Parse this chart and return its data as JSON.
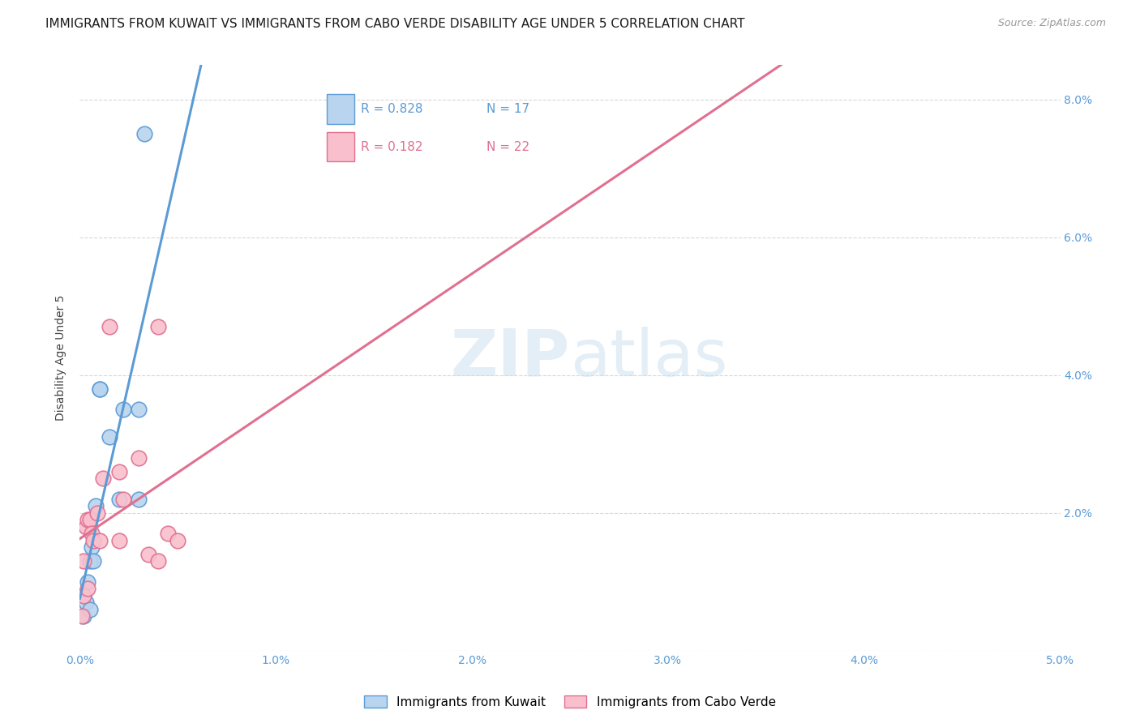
{
  "title": "IMMIGRANTS FROM KUWAIT VS IMMIGRANTS FROM CABO VERDE DISABILITY AGE UNDER 5 CORRELATION CHART",
  "source": "Source: ZipAtlas.com",
  "ylabel": "Disability Age Under 5",
  "xlim": [
    0.0,
    0.05
  ],
  "ylim": [
    0.0,
    0.085
  ],
  "xticks": [
    0.0,
    0.01,
    0.02,
    0.03,
    0.04,
    0.05
  ],
  "yticks": [
    0.0,
    0.02,
    0.04,
    0.06,
    0.08
  ],
  "xticklabels": [
    "0.0%",
    "1.0%",
    "2.0%",
    "3.0%",
    "4.0%",
    "5.0%"
  ],
  "yticklabels": [
    "",
    "2.0%",
    "4.0%",
    "6.0%",
    "8.0%"
  ],
  "legend_r1": "R = 0.828",
  "legend_n1": "N = 17",
  "legend_r2": "R = 0.182",
  "legend_n2": "N = 22",
  "color_kuwait": "#b8d4ee",
  "color_cabo": "#f9bfcc",
  "line_color_kuwait": "#5b9bd5",
  "line_color_cabo": "#e07090",
  "background_color": "#ffffff",
  "grid_color": "#d8d8d8",
  "kuwait_x": [
    0.0002,
    0.0002,
    0.0003,
    0.0004,
    0.0005,
    0.0005,
    0.0006,
    0.0007,
    0.0008,
    0.001,
    0.001,
    0.0015,
    0.002,
    0.0022,
    0.003,
    0.003,
    0.0033
  ],
  "kuwait_y": [
    0.005,
    0.008,
    0.007,
    0.01,
    0.013,
    0.006,
    0.015,
    0.013,
    0.021,
    0.038,
    0.038,
    0.031,
    0.022,
    0.035,
    0.035,
    0.022,
    0.075
  ],
  "cabo_x": [
    0.0001,
    0.0002,
    0.0002,
    0.0003,
    0.0004,
    0.0004,
    0.0005,
    0.0006,
    0.0007,
    0.0009,
    0.001,
    0.0012,
    0.0015,
    0.002,
    0.002,
    0.0022,
    0.003,
    0.0035,
    0.004,
    0.004,
    0.0045,
    0.005
  ],
  "cabo_y": [
    0.005,
    0.008,
    0.013,
    0.018,
    0.019,
    0.009,
    0.019,
    0.017,
    0.016,
    0.02,
    0.016,
    0.025,
    0.047,
    0.026,
    0.016,
    0.022,
    0.028,
    0.014,
    0.013,
    0.047,
    0.017,
    0.016
  ],
  "marker_size_base": 180,
  "title_fontsize": 11,
  "axis_label_fontsize": 10,
  "tick_fontsize": 10,
  "legend_fontsize": 11,
  "source_fontsize": 9
}
